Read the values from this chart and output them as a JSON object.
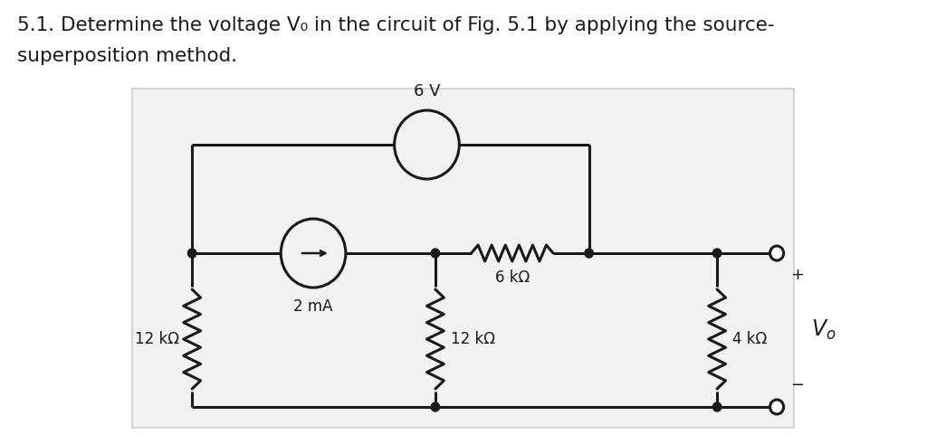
{
  "title_line1": "5.1. Determine the voltage V₀ in the circuit of Fig. 5.1 by applying the source-",
  "title_line2": "superposition method.",
  "bg_color": "#ffffff",
  "box_bg": "#efefef",
  "line_color": "#1a1a1a",
  "title_fontsize": 15.5,
  "label_12kohm_left": "12 kΩ",
  "label_12kohm_mid": "12 kΩ",
  "label_4kohm": "4 kΩ",
  "label_6kohm": "6 kΩ",
  "label_2mA": "2 mA",
  "label_6V": "6 V",
  "label_plus": "+",
  "label_minus": "−",
  "label_Vo": "V_o"
}
